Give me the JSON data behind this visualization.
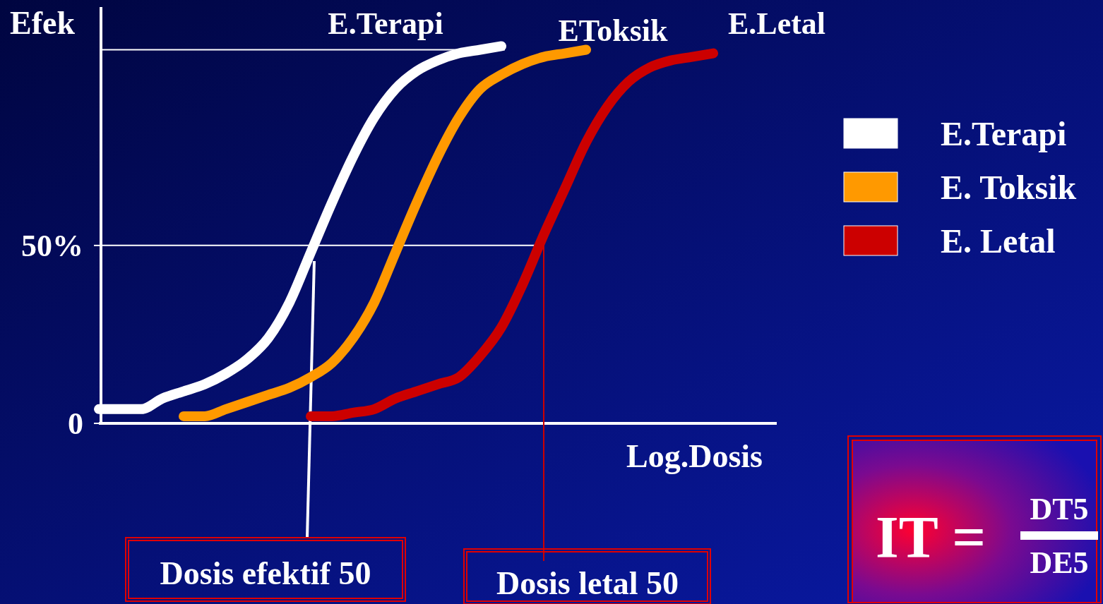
{
  "chart_data": {
    "type": "line",
    "xlabel": "Log.Dosis",
    "ylabel": "Efek",
    "categories": [
      null,
      null,
      null,
      null,
      null,
      null,
      null,
      null,
      null,
      null,
      null,
      null,
      null,
      null,
      null,
      null,
      null,
      null,
      null,
      null,
      null,
      null,
      null,
      null,
      null,
      null,
      null,
      null,
      null,
      null,
      null,
      null,
      null
    ],
    "series": [
      {
        "name": "E.Terapi",
        "color": "#ffffff",
        "values": [
          4,
          4,
          4,
          7,
          9,
          11,
          14,
          18,
          24,
          34,
          48,
          62,
          75,
          86,
          94,
          99,
          102,
          104,
          105,
          106,
          null,
          null,
          null,
          null,
          null,
          null,
          null,
          null,
          null,
          null,
          null,
          null,
          null
        ]
      },
      {
        "name": "E. Toksik",
        "color": "#ff9900",
        "values": [
          null,
          null,
          null,
          null,
          2,
          2,
          4,
          6,
          8,
          10,
          13,
          17,
          24,
          34,
          48,
          62,
          75,
          86,
          94,
          98,
          101,
          103,
          104,
          105,
          null,
          null,
          null,
          null,
          null,
          null,
          null,
          null,
          null
        ]
      },
      {
        "name": "E. Letal",
        "color": "#cc0000",
        "values": [
          null,
          null,
          null,
          null,
          null,
          null,
          null,
          null,
          null,
          null,
          2,
          2,
          3,
          4,
          7,
          9,
          11,
          13,
          19,
          27,
          39,
          53,
          66,
          79,
          89,
          96,
          100,
          102,
          103,
          104,
          null,
          null,
          null
        ]
      }
    ],
    "ylim": [
      0,
      117
    ],
    "yticks": [
      0,
      {
        "value": 50,
        "label": "50%"
      }
    ],
    "tick_labels": "y",
    "legend": "right",
    "ref_lines": [
      {
        "axis": "y",
        "value": 50,
        "color": "#ffffff"
      },
      {
        "axis": "y",
        "value": 105,
        "color": "#ffffff"
      }
    ],
    "annotations": [
      "E.Terapi",
      "EToksik",
      "E.Letal",
      "Dosis efektif 50",
      "Dosis letal 50",
      "IT =",
      "DT5",
      "DE5"
    ]
  }
}
